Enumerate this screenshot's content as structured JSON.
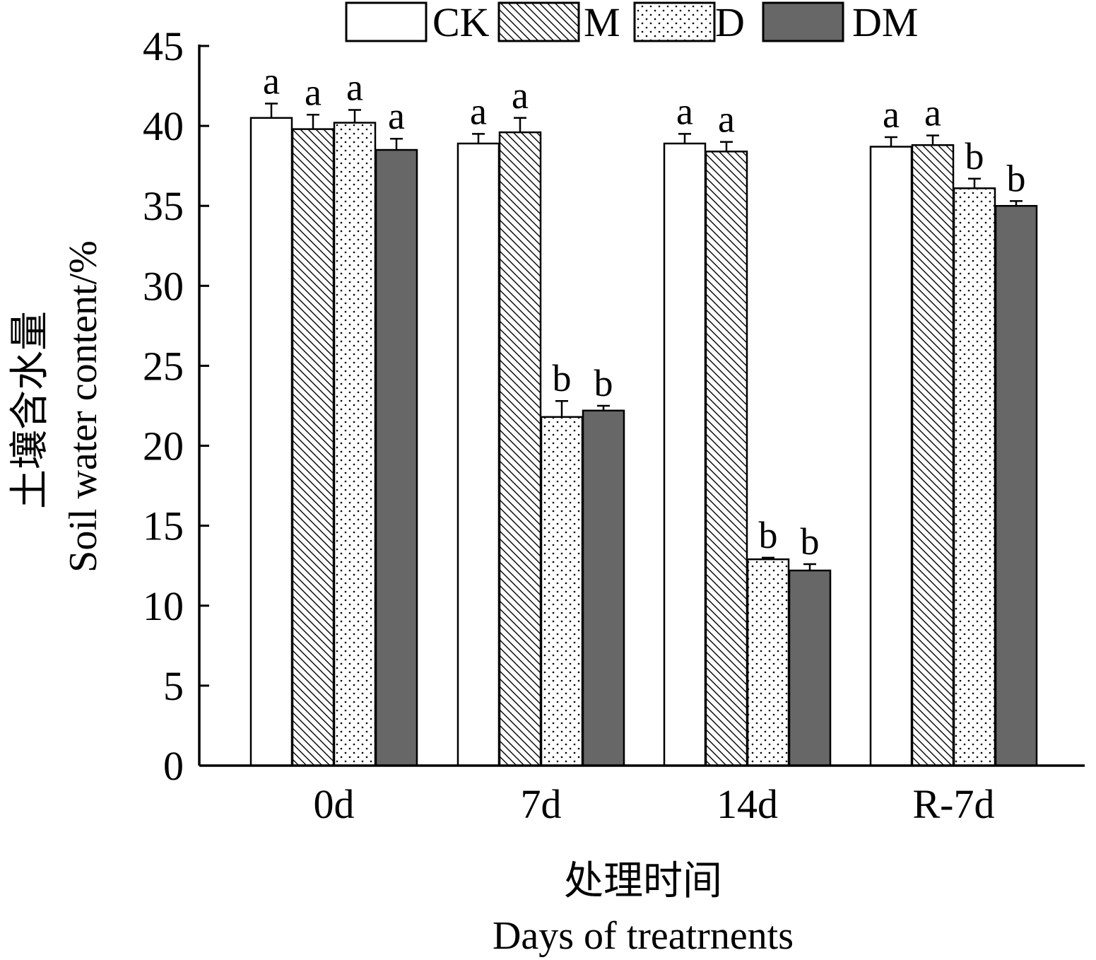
{
  "chart_data": {
    "type": "bar",
    "categories": [
      "0d",
      "7d",
      "14d",
      "R-7d"
    ],
    "series": [
      {
        "name": "CK",
        "pattern": "blank",
        "values": [
          40.5,
          38.9,
          38.9,
          38.7
        ],
        "errors": [
          0.9,
          0.6,
          0.6,
          0.6
        ],
        "letters": [
          "a",
          "a",
          "a",
          "a"
        ]
      },
      {
        "name": "M",
        "pattern": "hatch",
        "values": [
          39.8,
          39.6,
          38.4,
          38.8
        ],
        "errors": [
          0.9,
          0.9,
          0.6,
          0.6
        ],
        "letters": [
          "a",
          "a",
          "a",
          "a"
        ]
      },
      {
        "name": "D",
        "pattern": "dots",
        "values": [
          40.2,
          21.8,
          12.9,
          36.1
        ],
        "errors": [
          0.8,
          1.0,
          0.1,
          0.6
        ],
        "letters": [
          "a",
          "b",
          "b",
          "b"
        ]
      },
      {
        "name": "DM",
        "pattern": "solid",
        "values": [
          38.5,
          22.2,
          12.2,
          35.0
        ],
        "errors": [
          0.7,
          0.3,
          0.4,
          0.3
        ],
        "letters": [
          "a",
          "b",
          "b",
          "b"
        ]
      }
    ],
    "ylim": [
      0,
      45
    ],
    "yticks": [
      0,
      5,
      10,
      15,
      20,
      25,
      30,
      35,
      40,
      45
    ],
    "ylabel_cn": "土壤含水量",
    "ylabel_en": "Soil water content/%",
    "xlabel_cn": "处理时间",
    "xlabel_en": "Days of treatrnents",
    "legend_position": "top",
    "colors": {
      "solid": "#676767",
      "outline": "#000000",
      "background": "#ffffff"
    }
  }
}
